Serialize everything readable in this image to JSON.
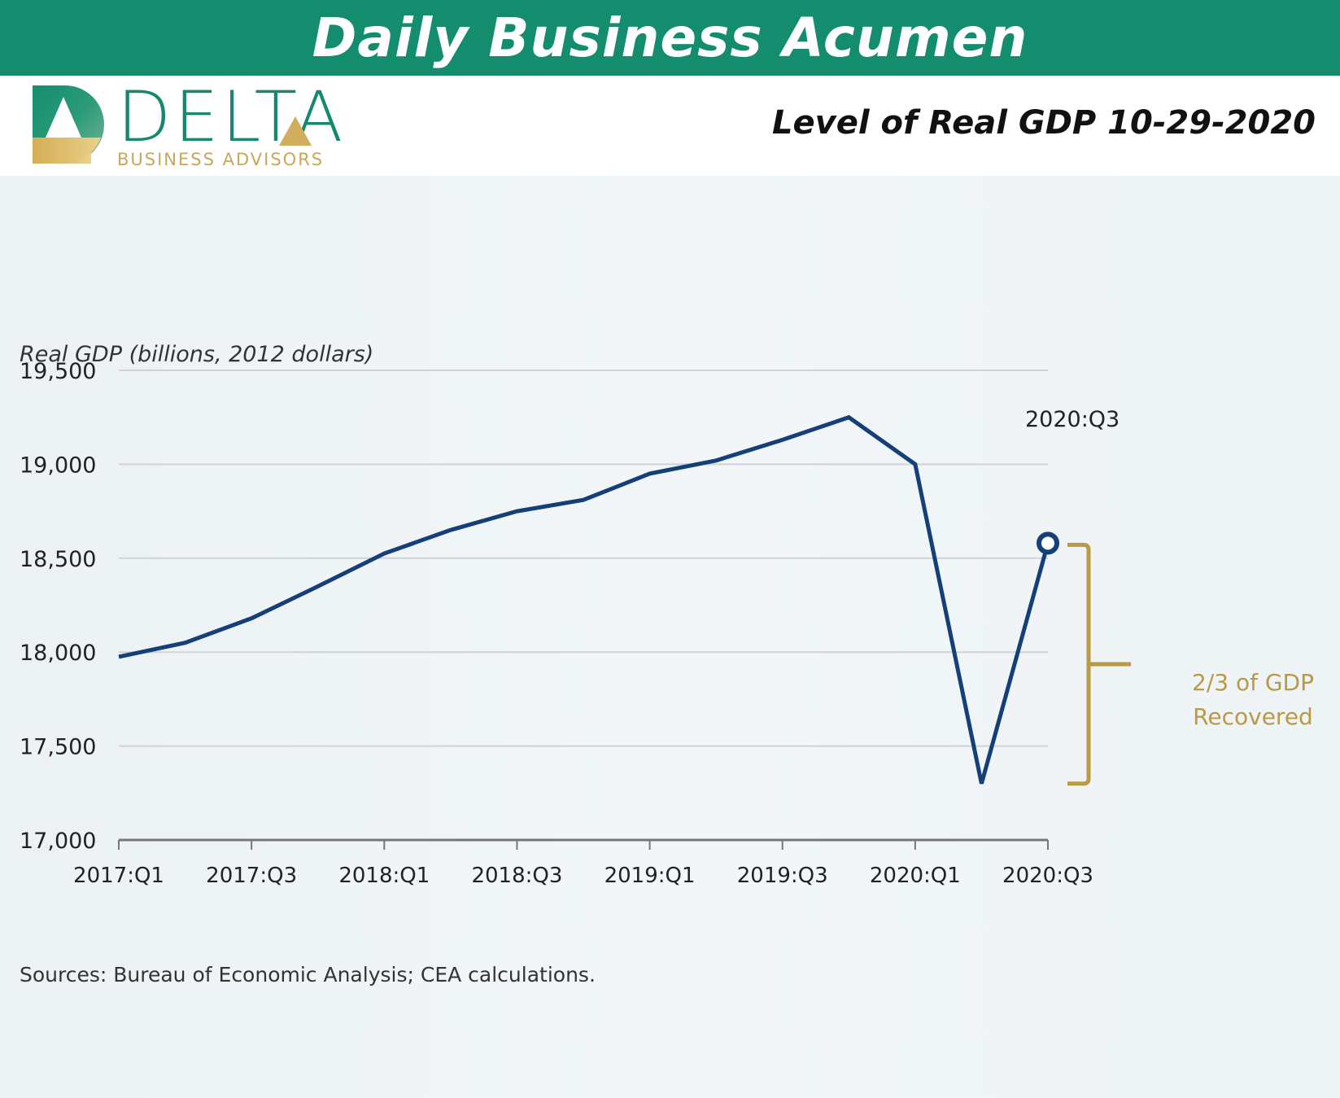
{
  "banner": {
    "title": "Daily Business Acumen"
  },
  "logo": {
    "name": "DELTA",
    "subtitle": "BUSINESS ADVISORS"
  },
  "headline": "Level of Real GDP  10-29-2020",
  "colors": {
    "banner": "#148d6f",
    "brand_green": "#15896b",
    "brand_gold": "#c9a75a",
    "line": "#143f78",
    "annotation": "#b99a45",
    "grid": "#cfd3d5"
  },
  "chart_data": {
    "type": "line",
    "title": "Level of Real GDP",
    "xlabel": "",
    "ylabel": "Real GDP (billions, 2012 dollars)",
    "ylim": [
      17000,
      19500
    ],
    "yticks": [
      "17,000",
      "17,500",
      "18,000",
      "18,500",
      "19,000",
      "19,500"
    ],
    "xtick_labels": [
      "2017:Q1",
      "2017:Q3",
      "2018:Q1",
      "2018:Q3",
      "2019:Q1",
      "2019:Q3",
      "2020:Q1",
      "2020:Q3"
    ],
    "grid": true,
    "x": [
      "2017:Q1",
      "2017:Q2",
      "2017:Q3",
      "2017:Q4",
      "2018:Q1",
      "2018:Q2",
      "2018:Q3",
      "2018:Q4",
      "2019:Q1",
      "2019:Q2",
      "2019:Q3",
      "2019:Q4",
      "2020:Q1",
      "2020:Q2",
      "2020:Q3"
    ],
    "series": [
      {
        "name": "Real GDP",
        "values": [
          17975,
          18050,
          18180,
          18350,
          18525,
          18650,
          18750,
          18810,
          18950,
          19020,
          19130,
          19250,
          19000,
          17300,
          18580
        ]
      }
    ],
    "annotations": [
      {
        "text": "2020:Q3",
        "target": "2020:Q3",
        "kind": "point-label"
      },
      {
        "text": "2/3 of GDP Recovered",
        "kind": "bracket",
        "from": 17300,
        "to": 18580
      }
    ],
    "source": "Sources: Bureau of Economic Analysis; CEA calculations."
  },
  "labels": {
    "ylabel": "Real GDP (billions, 2012 dollars)",
    "peak": "2020:Q3",
    "anno_line1": "2/3 of GDP",
    "anno_line2": "Recovered",
    "source": "Sources: Bureau of Economic Analysis; CEA calculations."
  }
}
